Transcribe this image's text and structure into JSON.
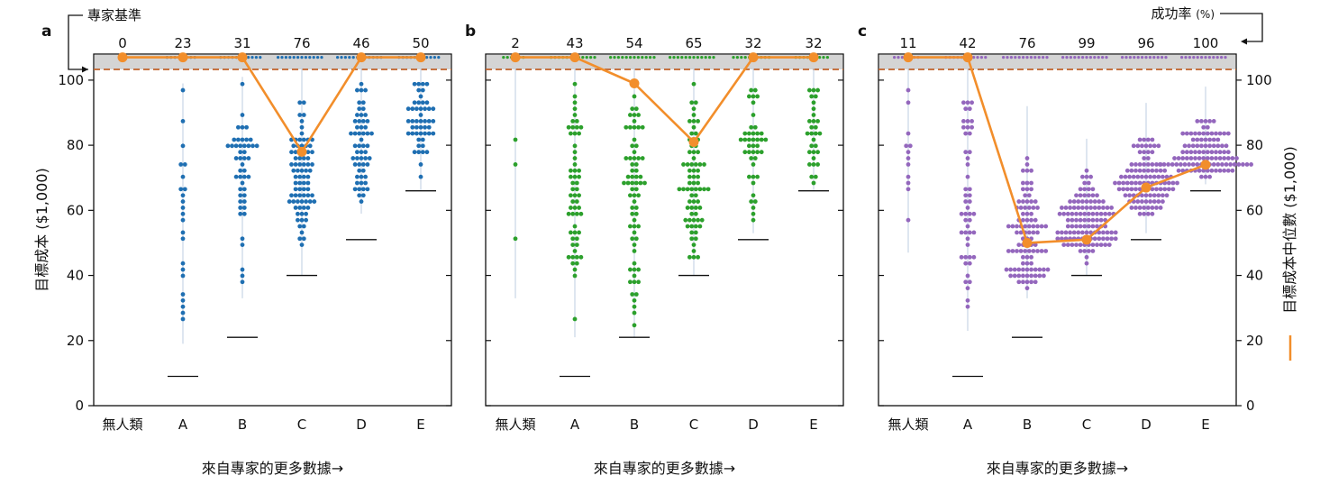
{
  "annotations": {
    "expert_baseline": "專家基準",
    "success_rate": "成功率",
    "success_rate_unit": "(%)"
  },
  "chart_data": [
    {
      "panel": "a",
      "type": "scatter",
      "categories": [
        "無人類",
        "A",
        "B",
        "C",
        "D",
        "E"
      ],
      "success_rates": [
        "0",
        "23",
        "31",
        "76",
        "46",
        "50"
      ],
      "xlabel": "來自專家的更多數據→",
      "ylabel": "目標成本 ($1,000)",
      "ylim": [
        0,
        108
      ],
      "yticks": [
        0,
        20,
        40,
        60,
        80,
        100
      ],
      "color": "#1f6fb2",
      "median_color": "#f28e2b",
      "median_line": [
        107,
        107,
        107,
        78,
        107,
        107
      ],
      "baseline_marks": [
        null,
        9,
        21,
        40,
        51,
        66
      ],
      "point_counts": [
        0,
        23,
        47,
        80,
        56,
        48
      ],
      "distributions": [
        null,
        {
          "lo": 19,
          "hi": 99,
          "mode": 24,
          "spread": 1.4
        },
        {
          "lo": 33,
          "hi": 101,
          "mode": 82,
          "spread": 1.0
        },
        {
          "lo": 40,
          "hi": 104,
          "mode": 70,
          "spread": 0.75
        },
        {
          "lo": 59,
          "hi": 104,
          "mode": 78,
          "spread": 0.8
        },
        {
          "lo": 66,
          "hi": 104,
          "mode": 88,
          "spread": 0.8
        }
      ]
    },
    {
      "panel": "b",
      "type": "scatter",
      "categories": [
        "無人類",
        "A",
        "B",
        "C",
        "D",
        "E"
      ],
      "success_rates": [
        "2",
        "43",
        "54",
        "65",
        "32",
        "32"
      ],
      "xlabel": "來自專家的更多數據→",
      "ylim": [
        0,
        108
      ],
      "yticks": [
        0,
        20,
        40,
        60,
        80,
        100
      ],
      "color": "#2ca02c",
      "median_color": "#f28e2b",
      "median_line": [
        107,
        107,
        99,
        81,
        107,
        107
      ],
      "baseline_marks": [
        null,
        9,
        21,
        40,
        51,
        66
      ],
      "point_counts": [
        3,
        58,
        68,
        72,
        42,
        30
      ],
      "distributions": [
        {
          "lo": 33,
          "hi": 104,
          "mode": 90,
          "spread": 1.0
        },
        {
          "lo": 21,
          "hi": 104,
          "mode": 60,
          "spread": 1.0
        },
        {
          "lo": 21,
          "hi": 104,
          "mode": 70,
          "spread": 1.0
        },
        {
          "lo": 40,
          "hi": 104,
          "mode": 65,
          "spread": 0.8
        },
        {
          "lo": 53,
          "hi": 104,
          "mode": 80,
          "spread": 1.0
        },
        {
          "lo": 66,
          "hi": 104,
          "mode": 85,
          "spread": 1.0
        }
      ]
    },
    {
      "panel": "c",
      "type": "scatter",
      "categories": [
        "無人類",
        "A",
        "B",
        "C",
        "D",
        "E"
      ],
      "success_rates": [
        "11",
        "42",
        "76",
        "99",
        "96",
        "100"
      ],
      "xlabel": "來自專家的更多數據→",
      "ylabel": "目標成本中位數 ($1,000)",
      "ylim": [
        0,
        108
      ],
      "yticks": [
        0,
        20,
        40,
        60,
        80,
        100
      ],
      "color": "#9467bd",
      "median_color": "#f28e2b",
      "median_line": [
        107,
        107,
        50,
        51,
        67,
        74
      ],
      "baseline_marks": [
        null,
        9,
        21,
        40,
        51,
        66
      ],
      "point_counts": [
        12,
        50,
        98,
        120,
        110,
        105
      ],
      "distributions": [
        {
          "lo": 47,
          "hi": 104,
          "mode": 75,
          "spread": 1.0
        },
        {
          "lo": 23,
          "hi": 104,
          "mode": 60,
          "spread": 1.0
        },
        {
          "lo": 33,
          "hi": 92,
          "mode": 41,
          "spread": 0.4
        },
        {
          "lo": 40,
          "hi": 82,
          "mode": 52,
          "spread": 0.32
        },
        {
          "lo": 53,
          "hi": 93,
          "mode": 66,
          "spread": 0.35
        },
        {
          "lo": 68,
          "hi": 98,
          "mode": 74,
          "spread": 0.25
        }
      ]
    }
  ]
}
